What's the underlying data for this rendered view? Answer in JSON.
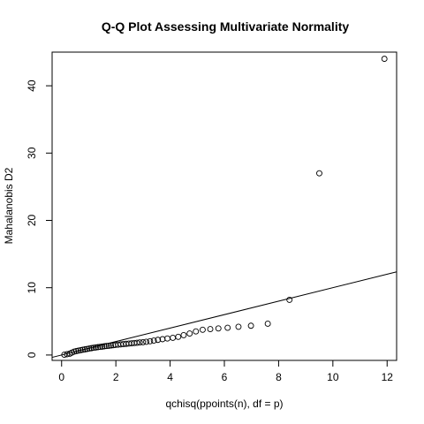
{
  "chart_data": {
    "type": "scatter",
    "title": "Q-Q Plot Assessing Multivariate Normality",
    "xlabel": "qchisq(ppoints(n), df = p)",
    "ylabel": "Mahalanobis D2",
    "xlim": [
      -0.35,
      12.35
    ],
    "ylim": [
      -0.8,
      45.0
    ],
    "xticks": [
      0,
      2,
      4,
      6,
      8,
      10,
      12
    ],
    "yticks": [
      0,
      10,
      20,
      30,
      40
    ],
    "grid": false,
    "reference_line": {
      "intercept": 0,
      "slope": 1
    },
    "series": [
      {
        "points": [
          [
            0.1,
            0.05
          ],
          [
            0.2,
            0.12
          ],
          [
            0.3,
            0.2
          ],
          [
            0.38,
            0.35
          ],
          [
            0.46,
            0.5
          ],
          [
            0.54,
            0.58
          ],
          [
            0.62,
            0.65
          ],
          [
            0.7,
            0.72
          ],
          [
            0.78,
            0.78
          ],
          [
            0.86,
            0.84
          ],
          [
            0.94,
            0.9
          ],
          [
            1.02,
            0.96
          ],
          [
            1.1,
            1.02
          ],
          [
            1.18,
            1.08
          ],
          [
            1.26,
            1.12
          ],
          [
            1.34,
            1.17
          ],
          [
            1.42,
            1.21
          ],
          [
            1.5,
            1.25
          ],
          [
            1.58,
            1.3
          ],
          [
            1.66,
            1.34
          ],
          [
            1.74,
            1.38
          ],
          [
            1.82,
            1.42
          ],
          [
            1.9,
            1.46
          ],
          [
            1.98,
            1.5
          ],
          [
            2.08,
            1.54
          ],
          [
            2.18,
            1.58
          ],
          [
            2.28,
            1.62
          ],
          [
            2.38,
            1.66
          ],
          [
            2.48,
            1.7
          ],
          [
            2.58,
            1.74
          ],
          [
            2.68,
            1.78
          ],
          [
            2.78,
            1.82
          ],
          [
            2.88,
            1.86
          ],
          [
            3.0,
            1.9
          ],
          [
            3.12,
            1.96
          ],
          [
            3.26,
            2.05
          ],
          [
            3.4,
            2.15
          ],
          [
            3.55,
            2.25
          ],
          [
            3.72,
            2.35
          ],
          [
            3.9,
            2.45
          ],
          [
            4.1,
            2.55
          ],
          [
            4.3,
            2.7
          ],
          [
            4.5,
            2.95
          ],
          [
            4.72,
            3.2
          ],
          [
            4.95,
            3.5
          ],
          [
            5.2,
            3.75
          ],
          [
            5.48,
            3.85
          ],
          [
            5.78,
            3.95
          ],
          [
            6.12,
            4.05
          ],
          [
            6.52,
            4.2
          ],
          [
            6.98,
            4.35
          ],
          [
            7.6,
            4.65
          ],
          [
            8.4,
            8.2
          ],
          [
            9.5,
            27.0
          ],
          [
            11.9,
            44.0
          ]
        ]
      }
    ]
  }
}
